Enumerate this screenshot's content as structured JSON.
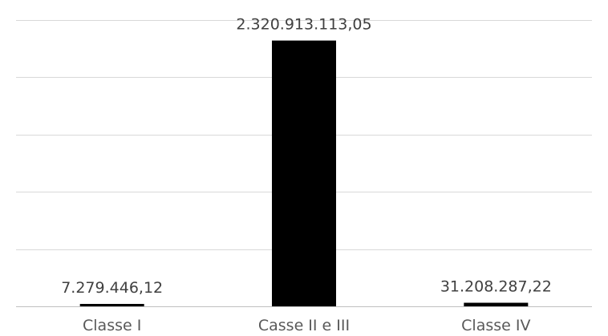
{
  "chart_data": {
    "type": "bar",
    "categories": [
      "Classe I",
      "Casse II e III",
      "Classe IV"
    ],
    "values": [
      7279446.12,
      2320913113.05,
      31208287.22
    ],
    "data_labels": [
      "7.279.446,12",
      "2.320.913.113,05",
      "31.208.287,22"
    ],
    "title": "",
    "xlabel": "",
    "ylabel": "",
    "ylim": [
      0,
      2500000000
    ],
    "grid": true,
    "legend": "none",
    "bar_color": "#000000",
    "grid_color": "#d9d9d9",
    "label_color": "#404040",
    "tick_color": "#595959"
  }
}
